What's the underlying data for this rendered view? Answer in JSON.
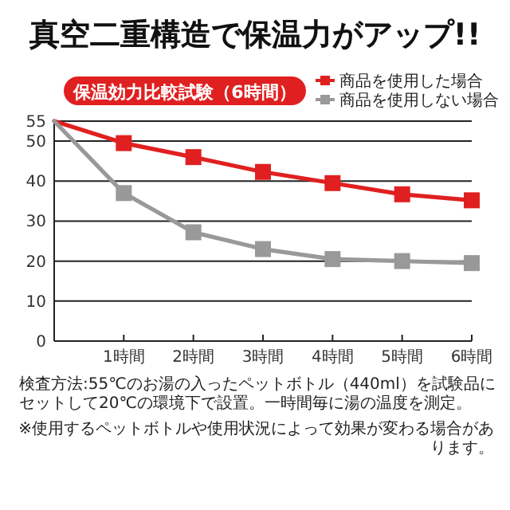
{
  "chart_data": {
    "type": "line",
    "title": "真空二重構造で保温力がアップ!!",
    "subtitle": "保温効力比較試験（6時間）",
    "x": [
      0,
      1,
      2,
      3,
      4,
      5,
      6
    ],
    "xlim": [
      0,
      6
    ],
    "xticks": [
      {
        "value": 1,
        "label": "1時間"
      },
      {
        "value": 2,
        "label": "2時間"
      },
      {
        "value": 3,
        "label": "3時間"
      },
      {
        "value": 4,
        "label": "4時間"
      },
      {
        "value": 5,
        "label": "5時間"
      },
      {
        "value": 6,
        "label": "6時間"
      }
    ],
    "ylim": [
      0,
      55
    ],
    "yticks": [
      0,
      10,
      20,
      30,
      40,
      50,
      55
    ],
    "grid": "y",
    "legend": "top right",
    "marker": "square",
    "line_style": "solid",
    "series": [
      {
        "name": "商品を使用した場合",
        "color": "#e02020",
        "values": [
          55,
          49.5,
          46,
          42.3,
          39.5,
          36.7,
          35.2
        ]
      },
      {
        "name": "商品を使用しない場合",
        "color": "#999999",
        "values": [
          55,
          37,
          27.2,
          23,
          20.5,
          20,
          19.5
        ]
      }
    ],
    "annotations": [
      "検査方法:55℃のお湯の入ったペットボトル（440ml）を試験品にセットして20℃の環境下で設置。一時間毎に湯の温度を測定。",
      "※使用するペットボトルや使用状況によって効果が変わる場合があります。"
    ]
  }
}
